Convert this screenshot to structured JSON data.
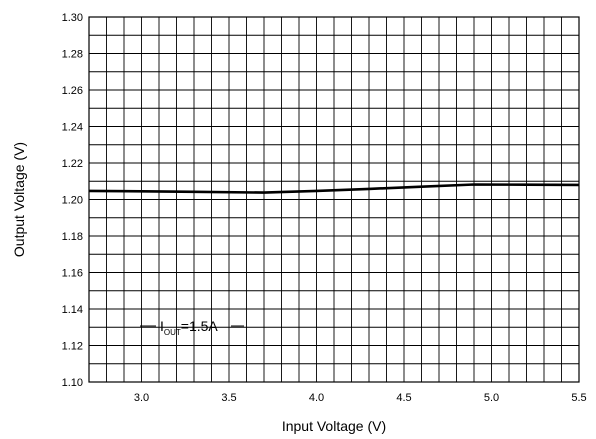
{
  "chart_data": {
    "type": "line",
    "title": "",
    "xlabel": "Input Voltage (V)",
    "ylabel": "Output Voltage (V)",
    "xlim": [
      2.7,
      5.5
    ],
    "ylim": [
      1.1,
      1.3
    ],
    "x_ticks": [
      3.0,
      3.5,
      4.0,
      4.5,
      5.0,
      5.5
    ],
    "x_tick_labels": [
      "3.0",
      "3.5",
      "4.0",
      "4.5",
      "5.0",
      "5.5"
    ],
    "x_minor_step": 0.1,
    "y_ticks": [
      1.1,
      1.12,
      1.14,
      1.16,
      1.18,
      1.2,
      1.22,
      1.24,
      1.26,
      1.28,
      1.3
    ],
    "y_tick_labels": [
      "1.10",
      "1.12",
      "1.14",
      "1.16",
      "1.18",
      "1.20",
      "1.22",
      "1.24",
      "1.26",
      "1.28",
      "1.30"
    ],
    "y_minor_step": 0.01,
    "grid": true,
    "legend": "none",
    "series": [
      {
        "x": [
          2.7,
          3.0,
          3.3,
          3.7,
          4.0,
          4.3,
          4.6,
          4.9,
          5.2,
          5.5
        ],
        "y": [
          1.2047,
          1.2045,
          1.2042,
          1.2038,
          1.2047,
          1.2058,
          1.207,
          1.2082,
          1.2081,
          1.208
        ],
        "color": "#000000"
      }
    ],
    "annotation": {
      "main": "I",
      "subscript": "OUT",
      "suffix": "=1.5A"
    }
  }
}
